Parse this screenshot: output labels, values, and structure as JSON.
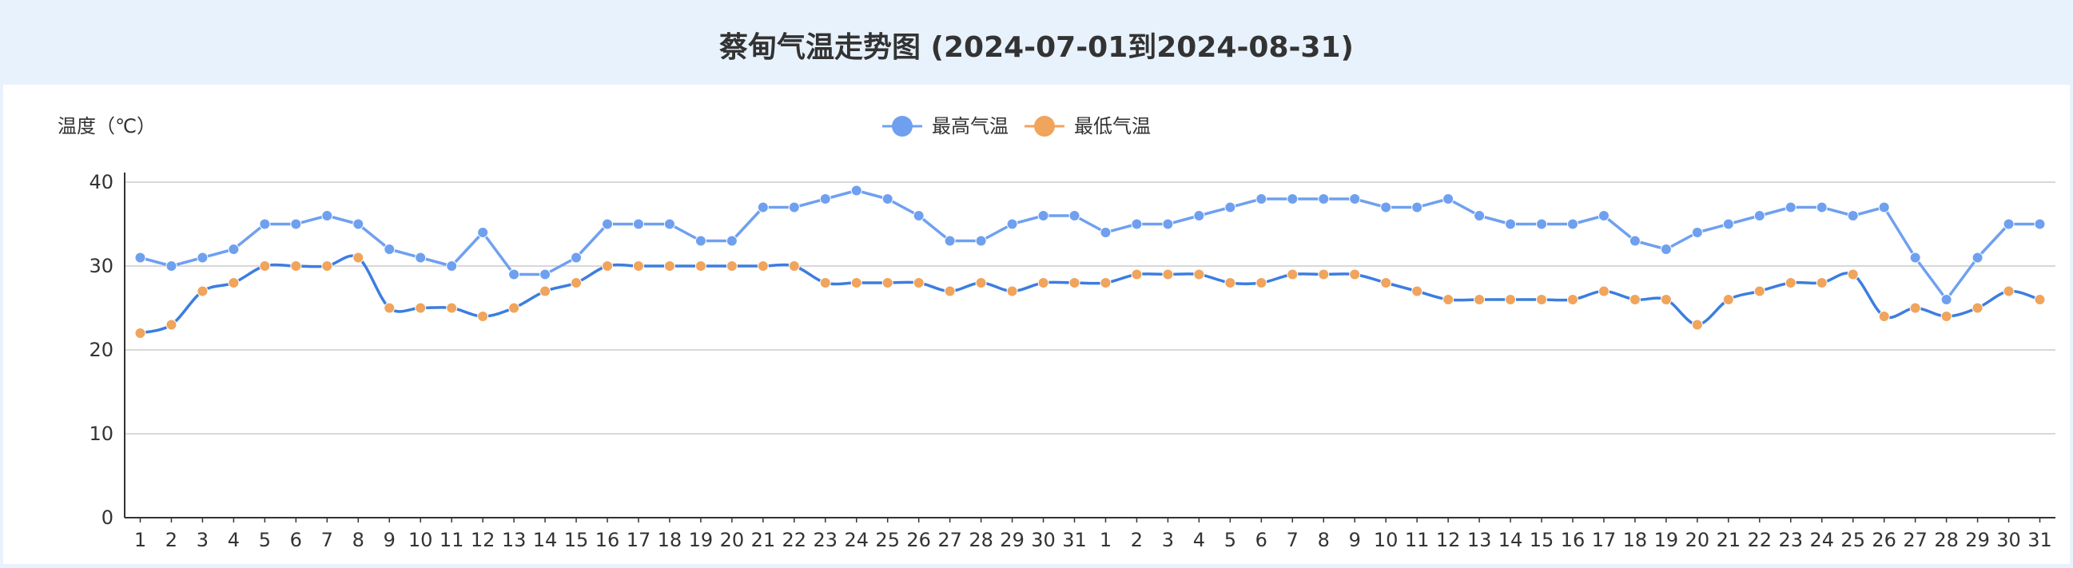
{
  "chart_data": {
    "type": "line",
    "title": "蔡甸气温走势图 (2024-07-01到2024-08-31)",
    "ylabel": "温度（℃）",
    "xlabel": "",
    "ylim": [
      0,
      40
    ],
    "yticks": [
      0,
      10,
      20,
      30,
      40
    ],
    "legend_position": "top-center",
    "grid": true,
    "categories": [
      "1",
      "2",
      "3",
      "4",
      "5",
      "6",
      "7",
      "8",
      "9",
      "10",
      "11",
      "12",
      "13",
      "14",
      "15",
      "16",
      "17",
      "18",
      "19",
      "20",
      "21",
      "22",
      "23",
      "24",
      "25",
      "26",
      "27",
      "28",
      "29",
      "30",
      "31",
      "1",
      "2",
      "3",
      "4",
      "5",
      "6",
      "7",
      "8",
      "9",
      "10",
      "11",
      "12",
      "13",
      "14",
      "15",
      "16",
      "17",
      "18",
      "19",
      "20",
      "21",
      "22",
      "23",
      "24",
      "25",
      "26",
      "27",
      "28",
      "29",
      "30",
      "31"
    ],
    "series": [
      {
        "name": "最高气温",
        "line_color": "#6fa0f0",
        "marker_color": "#6fa0f0",
        "values": [
          31,
          30,
          31,
          32,
          35,
          35,
          36,
          35,
          32,
          31,
          30,
          34,
          29,
          29,
          31,
          35,
          35,
          35,
          33,
          33,
          37,
          37,
          38,
          39,
          38,
          36,
          33,
          33,
          35,
          36,
          36,
          34,
          35,
          35,
          36,
          37,
          38,
          38,
          38,
          38,
          37,
          37,
          38,
          36,
          35,
          35,
          35,
          36,
          33,
          32,
          34,
          35,
          36,
          37,
          37,
          36,
          37,
          31,
          26,
          31,
          35,
          35
        ]
      },
      {
        "name": "最低气温",
        "line_color": "#3c7de0",
        "marker_color": "#f0a45c",
        "values": [
          22,
          23,
          27,
          28,
          30,
          30,
          30,
          31,
          25,
          25,
          25,
          24,
          25,
          27,
          28,
          30,
          30,
          30,
          30,
          30,
          30,
          30,
          28,
          28,
          28,
          28,
          27,
          28,
          27,
          28,
          28,
          28,
          29,
          29,
          29,
          28,
          28,
          29,
          29,
          29,
          28,
          27,
          26,
          26,
          26,
          26,
          26,
          27,
          26,
          26,
          23,
          26,
          27,
          28,
          28,
          29,
          24,
          25,
          24,
          25,
          27,
          26
        ]
      }
    ]
  }
}
